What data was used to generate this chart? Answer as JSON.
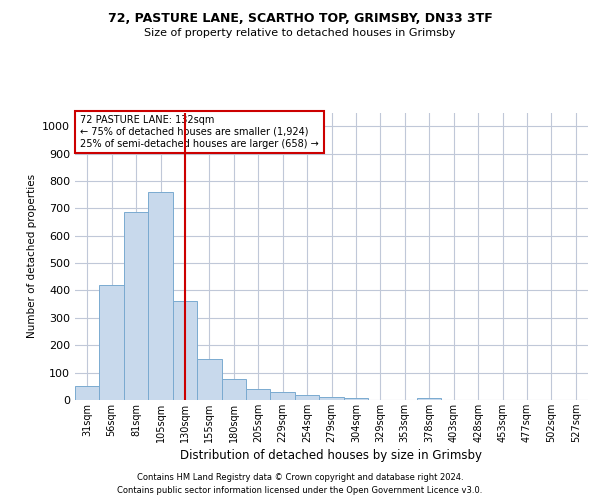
{
  "title1": "72, PASTURE LANE, SCARTHO TOP, GRIMSBY, DN33 3TF",
  "title2": "Size of property relative to detached houses in Grimsby",
  "xlabel": "Distribution of detached houses by size in Grimsby",
  "ylabel": "Number of detached properties",
  "footnote1": "Contains HM Land Registry data © Crown copyright and database right 2024.",
  "footnote2": "Contains public sector information licensed under the Open Government Licence v3.0.",
  "annotation_line1": "72 PASTURE LANE: 132sqm",
  "annotation_line2": "← 75% of detached houses are smaller (1,924)",
  "annotation_line3": "25% of semi-detached houses are larger (658) →",
  "bar_color": "#c8d9ec",
  "bar_edge_color": "#7aaad0",
  "vline_color": "#cc0000",
  "annotation_box_color": "#ffffff",
  "annotation_box_edge": "#cc0000",
  "background_color": "#ffffff",
  "grid_color": "#c0c8d8",
  "categories": [
    "31sqm",
    "56sqm",
    "81sqm",
    "105sqm",
    "130sqm",
    "155sqm",
    "180sqm",
    "205sqm",
    "229sqm",
    "254sqm",
    "279sqm",
    "304sqm",
    "329sqm",
    "353sqm",
    "378sqm",
    "403sqm",
    "428sqm",
    "453sqm",
    "477sqm",
    "502sqm",
    "527sqm"
  ],
  "values": [
    50,
    420,
    685,
    760,
    360,
    150,
    75,
    40,
    28,
    18,
    12,
    8,
    0,
    0,
    8,
    0,
    0,
    0,
    0,
    0,
    0
  ],
  "vline_x": 4,
  "ylim": [
    0,
    1050
  ],
  "yticks": [
    0,
    100,
    200,
    300,
    400,
    500,
    600,
    700,
    800,
    900,
    1000
  ]
}
